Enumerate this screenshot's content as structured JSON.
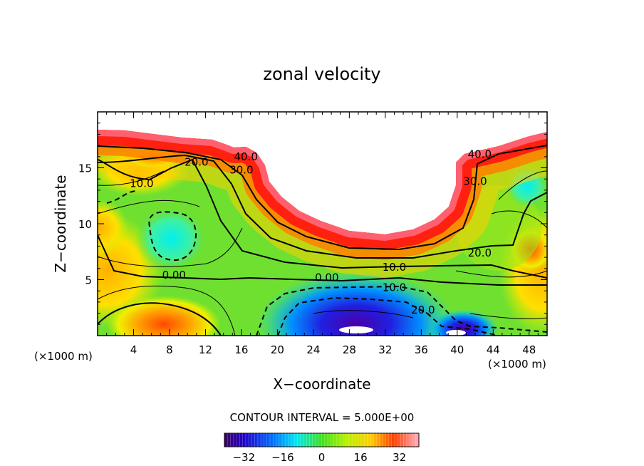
{
  "chart_data": {
    "type": "heatmap",
    "title": "zonal velocity",
    "xlabel": "X−coordinate",
    "ylabel": "Z−coordinate",
    "x_unit_left": "(×1000 m)",
    "x_unit_right": "(×1000 m)",
    "xlim": [
      0,
      50
    ],
    "ylim": [
      0,
      20
    ],
    "x_ticks": [
      4,
      8,
      12,
      16,
      20,
      24,
      28,
      32,
      36,
      40,
      44,
      48
    ],
    "y_ticks": [
      5,
      10,
      15
    ],
    "x_tick_labels": [
      "4",
      "8",
      "12",
      "16",
      "20",
      "24",
      "28",
      "32",
      "36",
      "40",
      "44",
      "48"
    ],
    "y_tick_labels": [
      "5",
      "10",
      "15"
    ],
    "contour_interval_text": "CONTOUR INTERVAL = 5.000E+00",
    "contour_interval": 5,
    "colorbar": {
      "range": [
        -40,
        40
      ],
      "ticks": [
        -32,
        -16,
        0,
        16,
        32
      ],
      "tick_labels": [
        "−32",
        "−16",
        "0",
        "16",
        "32"
      ]
    },
    "contour_labels": [
      {
        "text": "40.0",
        "x": 16.5,
        "z": 16.0
      },
      {
        "text": "30.0",
        "x": 16.0,
        "z": 14.8
      },
      {
        "text": "20.0",
        "x": 11.0,
        "z": 15.5
      },
      {
        "text": "10.0",
        "x": 4.9,
        "z": 13.6
      },
      {
        "text": "0.00",
        "x": 8.5,
        "z": 5.4
      },
      {
        "text": "0.00",
        "x": 25.5,
        "z": 5.2
      },
      {
        "text": "10.0",
        "x": 33.0,
        "z": 6.1
      },
      {
        "text": "10.0",
        "x": 33.0,
        "z": 4.3
      },
      {
        "text": "20.0",
        "x": 36.2,
        "z": 2.3
      },
      {
        "text": "20.0",
        "x": 42.5,
        "z": 7.4
      },
      {
        "text": "30.0",
        "x": 42.0,
        "z": 13.8
      },
      {
        "text": "40.0",
        "x": 42.5,
        "z": 16.2
      }
    ]
  }
}
